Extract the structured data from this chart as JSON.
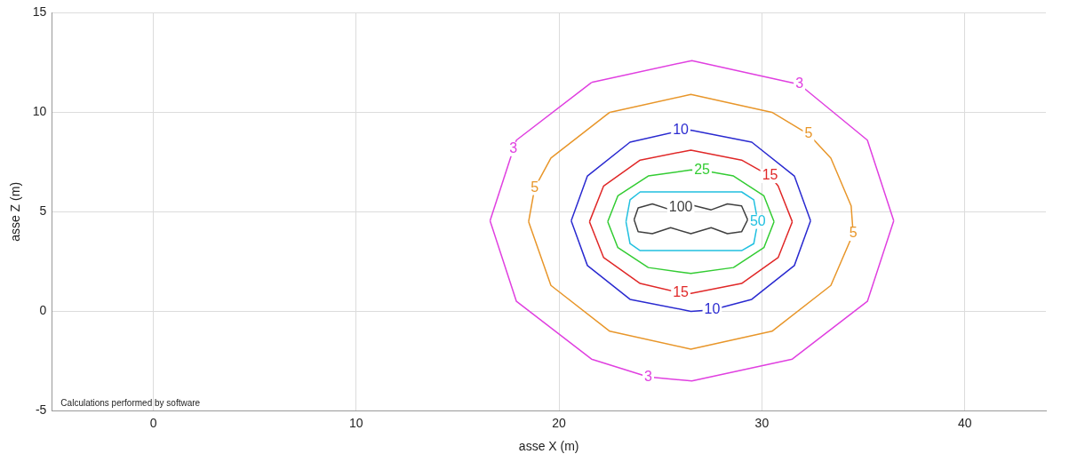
{
  "chart_data": {
    "type": "line",
    "xlabel": "asse X (m)",
    "ylabel": "asse Z (m)",
    "xlim": [
      -5,
      44
    ],
    "ylim": [
      -5,
      15
    ],
    "xticks": [
      0,
      10,
      20,
      30,
      40
    ],
    "yticks": [
      -5,
      0,
      5,
      10,
      15
    ],
    "grid": true,
    "legend": false,
    "marker": "none",
    "line_style": "solid",
    "series": [
      {
        "name": "3",
        "color": "#e040e0",
        "x": [
          31.85,
          26.55,
          21.6
        ],
        "values": [
          11.4,
          12.6,
          11.5
        ]
      },
      {
        "color": "#e040e0",
        "x": [
          21.6,
          17.9,
          17.75
        ],
        "values": [
          11.5,
          8.6,
          8.15
        ]
      },
      {
        "name": "3",
        "color": "#e040e0",
        "x": [
          17.75,
          16.6
        ],
        "values": [
          8.15,
          4.55
        ]
      },
      {
        "color": "#e040e0",
        "x": [
          16.6,
          17.9,
          21.6,
          24.4
        ],
        "values": [
          4.55,
          0.5,
          -2.4,
          -3.3
        ]
      },
      {
        "name": "3",
        "color": "#e040e0",
        "x": [
          24.4,
          26.55,
          31.5,
          35.2,
          36.5
        ],
        "values": [
          -3.3,
          -3.5,
          -2.4,
          0.5,
          4.55
        ]
      },
      {
        "color": "#e040e0",
        "x": [
          36.5,
          35.2,
          31.85
        ],
        "values": [
          4.55,
          8.6,
          11.4
        ]
      },
      {
        "name": "5",
        "color": "#e8962a",
        "x": [
          32.3,
          30.5,
          26.5,
          22.5
        ],
        "values": [
          8.9,
          10.0,
          10.9,
          10.0
        ]
      },
      {
        "color": "#e8962a",
        "x": [
          22.5,
          19.6,
          18.8
        ],
        "values": [
          10.0,
          7.7,
          6.2
        ]
      },
      {
        "name": "5",
        "color": "#e8962a",
        "x": [
          18.8,
          18.5
        ],
        "values": [
          6.2,
          4.5
        ]
      },
      {
        "color": "#e8962a",
        "x": [
          18.5,
          19.6,
          22.5,
          26.5,
          30.5,
          33.4,
          34.5
        ],
        "values": [
          4.5,
          1.3,
          -1.0,
          -1.9,
          -1.0,
          1.3,
          3.9
        ]
      },
      {
        "name": "5",
        "color": "#e8962a",
        "x": [
          34.5,
          34.4,
          33.4,
          32.3
        ],
        "values": [
          3.9,
          5.3,
          7.7,
          8.9
        ]
      },
      {
        "name": "10",
        "color": "#2a2ad0",
        "x": [
          26.0,
          23.5,
          21.4,
          20.6
        ],
        "values": [
          9.08,
          8.5,
          6.8,
          4.55
        ]
      },
      {
        "color": "#2a2ad0",
        "x": [
          20.6,
          21.4,
          23.5,
          26.5,
          27.55
        ],
        "values": [
          4.55,
          2.3,
          0.6,
          0.0,
          0.07
        ]
      },
      {
        "name": "10",
        "color": "#2a2ad0",
        "x": [
          27.55,
          29.5,
          31.6,
          32.4
        ],
        "values": [
          0.07,
          0.6,
          2.3,
          4.55
        ]
      },
      {
        "color": "#2a2ad0",
        "x": [
          32.4,
          31.6,
          29.5,
          26.5,
          26.0
        ],
        "values": [
          4.55,
          6.8,
          8.5,
          9.1,
          9.08
        ]
      },
      {
        "name": "15",
        "color": "#e02828",
        "x": [
          30.4,
          29.0,
          26.5,
          24.0,
          22.2,
          21.5
        ],
        "values": [
          6.8,
          7.6,
          8.1,
          7.6,
          6.3,
          4.5
        ]
      },
      {
        "color": "#e02828",
        "x": [
          21.5,
          22.2,
          24.0,
          26.0
        ],
        "values": [
          4.5,
          2.7,
          1.4,
          0.92
        ]
      },
      {
        "name": "15",
        "color": "#e02828",
        "x": [
          26.0,
          26.5,
          29.0,
          30.8,
          31.5
        ],
        "values": [
          0.92,
          0.9,
          1.4,
          2.7,
          4.5
        ]
      },
      {
        "color": "#e02828",
        "x": [
          31.5,
          30.8,
          30.4
        ],
        "values": [
          4.5,
          6.3,
          6.8
        ]
      },
      {
        "name": "25",
        "color": "#33cc33",
        "x": [
          27.05,
          26.5,
          24.4,
          22.9,
          22.4
        ],
        "values": [
          7.08,
          7.1,
          6.8,
          5.8,
          4.5
        ]
      },
      {
        "color": "#33cc33",
        "x": [
          22.4,
          22.9,
          24.4,
          26.5,
          28.6,
          30.1,
          30.6
        ],
        "values": [
          4.5,
          3.2,
          2.2,
          1.9,
          2.2,
          3.2,
          4.5
        ]
      },
      {
        "color": "#33cc33",
        "x": [
          30.6,
          30.1,
          28.6,
          27.05
        ],
        "values": [
          4.5,
          5.8,
          6.8,
          7.08
        ]
      },
      {
        "name": "50",
        "color": "#22c0e0",
        "x": [
          29.8,
          29.6,
          29.0,
          26.5,
          24.0,
          23.5,
          23.3
        ],
        "values": [
          4.5,
          5.6,
          6.0,
          6.0,
          6.0,
          5.6,
          4.5
        ]
      },
      {
        "color": "#22c0e0",
        "x": [
          23.3,
          23.5,
          24.0,
          26.5,
          29.0,
          29.6,
          29.8
        ],
        "values": [
          4.5,
          3.4,
          3.05,
          3.05,
          3.05,
          3.4,
          4.5
        ]
      },
      {
        "name": "100",
        "color": "#404040",
        "x": [
          26.0,
          25.5,
          24.6,
          23.9,
          23.7
        ],
        "values": [
          5.22,
          5.1,
          5.4,
          5.2,
          4.6
        ]
      },
      {
        "color": "#404040",
        "x": [
          23.7,
          23.9,
          24.6,
          25.5,
          26.5,
          27.5,
          28.3,
          29.0,
          29.3
        ],
        "values": [
          4.6,
          4.0,
          3.9,
          4.2,
          3.9,
          4.2,
          3.9,
          4.0,
          4.6
        ]
      },
      {
        "color": "#404040",
        "x": [
          29.3,
          29.0,
          28.3,
          27.5,
          26.5,
          26.0
        ],
        "values": [
          4.6,
          5.3,
          5.4,
          5.1,
          5.35,
          5.22
        ]
      }
    ],
    "annotations": [
      "Calculations performed by software"
    ]
  }
}
